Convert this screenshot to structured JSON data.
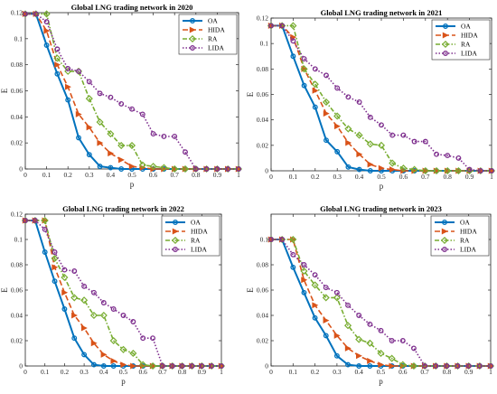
{
  "chart_data": [
    {
      "type": "line",
      "title": "Global LNG trading network in 2020",
      "xlabel": "p",
      "ylabel": "E",
      "xlim": [
        0,
        1
      ],
      "ylim": [
        0,
        0.12
      ],
      "xticks": [
        "0",
        "0.1",
        "0.2",
        "0.3",
        "0.4",
        "0.5",
        "0.6",
        "0.7",
        "0.8",
        "0.9",
        "1"
      ],
      "yticks": [
        "0",
        "0.02",
        "0.04",
        "0.06",
        "0.08",
        "0.1",
        "0.12"
      ],
      "ytick_values": [
        0,
        0.02,
        0.04,
        0.06,
        0.08,
        0.1,
        0.12
      ],
      "legend_position": "top-right",
      "series": [
        {
          "name": "OA",
          "color": "#0072BD",
          "marker": "circle",
          "x": [
            0,
            0.05,
            0.1,
            0.15,
            0.2,
            0.25,
            0.3,
            0.35,
            0.4,
            0.45,
            0.5,
            0.55,
            0.6,
            0.65,
            0.7,
            0.75,
            0.8,
            0.85,
            0.9,
            0.95,
            1
          ],
          "y": [
            0.119,
            0.119,
            0.095,
            0.073,
            0.053,
            0.024,
            0.011,
            0.002,
            0.001,
            0,
            0,
            0,
            0,
            0,
            0,
            0,
            0,
            0,
            0,
            0,
            0
          ]
        },
        {
          "name": "HIDA",
          "color": "#D95319",
          "marker": "triangle",
          "x": [
            0,
            0.05,
            0.1,
            0.15,
            0.2,
            0.25,
            0.3,
            0.35,
            0.4,
            0.45,
            0.5,
            0.55,
            0.6,
            0.65,
            0.7,
            0.75,
            0.8,
            0.85,
            0.9,
            0.95,
            1
          ],
          "y": [
            0.119,
            0.119,
            0.106,
            0.08,
            0.063,
            0.042,
            0.032,
            0.02,
            0.012,
            0.007,
            0.002,
            0.001,
            0,
            0,
            0,
            0,
            0,
            0,
            0,
            0,
            0
          ]
        },
        {
          "name": "RA",
          "color": "#77AC30",
          "marker": "diamond",
          "x": [
            0,
            0.05,
            0.1,
            0.15,
            0.2,
            0.25,
            0.3,
            0.35,
            0.4,
            0.45,
            0.5,
            0.55,
            0.6,
            0.65,
            0.7,
            0.75,
            0.8,
            0.85,
            0.9,
            0.95,
            1
          ],
          "y": [
            0.119,
            0.119,
            0.119,
            0.085,
            0.075,
            0.075,
            0.054,
            0.036,
            0.027,
            0.018,
            0.018,
            0.003,
            0.002,
            0.001,
            0,
            0,
            0,
            0,
            0,
            0,
            0
          ]
        },
        {
          "name": "LIDA",
          "color": "#7E2F8E",
          "marker": "circle",
          "x": [
            0,
            0.05,
            0.1,
            0.15,
            0.2,
            0.25,
            0.3,
            0.35,
            0.4,
            0.45,
            0.5,
            0.55,
            0.6,
            0.65,
            0.7,
            0.75,
            0.8,
            0.85,
            0.9,
            0.95,
            1
          ],
          "y": [
            0.119,
            0.119,
            0.113,
            0.092,
            0.077,
            0.075,
            0.067,
            0.058,
            0.055,
            0.05,
            0.046,
            0.042,
            0.027,
            0.025,
            0.025,
            0.013,
            0,
            0,
            0,
            0,
            0
          ]
        }
      ]
    },
    {
      "type": "line",
      "title": "Global LNG trading network in 2021",
      "xlabel": "p",
      "ylabel": "E",
      "xlim": [
        0,
        1
      ],
      "ylim": [
        0,
        0.12
      ],
      "xticks": [
        "0",
        "0.1",
        "0.2",
        "0.3",
        "0.4",
        "0.5",
        "0.6",
        "0.7",
        "0.8",
        "0.9",
        "1"
      ],
      "yticks": [
        "0",
        "0.02",
        "0.04",
        "0.06",
        "0.08",
        "0.1",
        "0.12"
      ],
      "ytick_values": [
        0,
        0.02,
        0.04,
        0.06,
        0.08,
        0.1,
        0.12
      ],
      "legend_position": "top-right",
      "series": [
        {
          "name": "OA",
          "color": "#0072BD",
          "marker": "circle",
          "x": [
            0,
            0.05,
            0.1,
            0.15,
            0.2,
            0.25,
            0.3,
            0.35,
            0.4,
            0.45,
            0.5,
            0.55,
            0.6,
            0.65,
            0.7,
            0.75,
            0.8,
            0.85,
            0.9,
            0.95,
            1
          ],
          "y": [
            0.114,
            0.114,
            0.09,
            0.067,
            0.05,
            0.024,
            0.015,
            0.003,
            0.001,
            0,
            0,
            0,
            0,
            0,
            0,
            0,
            0,
            0,
            0,
            0,
            0
          ]
        },
        {
          "name": "HIDA",
          "color": "#D95319",
          "marker": "triangle",
          "x": [
            0,
            0.05,
            0.1,
            0.15,
            0.2,
            0.25,
            0.3,
            0.35,
            0.4,
            0.45,
            0.5,
            0.55,
            0.6,
            0.65,
            0.7,
            0.75,
            0.8,
            0.85,
            0.9,
            0.95,
            1
          ],
          "y": [
            0.114,
            0.114,
            0.105,
            0.08,
            0.063,
            0.045,
            0.035,
            0.022,
            0.013,
            0.005,
            0.002,
            0.001,
            0,
            0,
            0,
            0,
            0,
            0,
            0,
            0,
            0
          ]
        },
        {
          "name": "RA",
          "color": "#77AC30",
          "marker": "diamond",
          "x": [
            0,
            0.05,
            0.1,
            0.15,
            0.2,
            0.25,
            0.3,
            0.35,
            0.4,
            0.45,
            0.5,
            0.55,
            0.6,
            0.65,
            0.7,
            0.75,
            0.8,
            0.85,
            0.9,
            0.95,
            1
          ],
          "y": [
            0.114,
            0.114,
            0.114,
            0.08,
            0.068,
            0.054,
            0.043,
            0.033,
            0.028,
            0.021,
            0.02,
            0.006,
            0.002,
            0.001,
            0,
            0,
            0,
            0,
            0,
            0,
            0
          ]
        },
        {
          "name": "LIDA",
          "color": "#7E2F8E",
          "marker": "circle",
          "x": [
            0,
            0.05,
            0.1,
            0.15,
            0.2,
            0.25,
            0.3,
            0.35,
            0.4,
            0.45,
            0.5,
            0.55,
            0.6,
            0.65,
            0.7,
            0.75,
            0.8,
            0.85,
            0.9,
            0.95,
            1
          ],
          "y": [
            0.114,
            0.114,
            0.102,
            0.088,
            0.08,
            0.075,
            0.065,
            0.058,
            0.054,
            0.042,
            0.036,
            0.028,
            0.028,
            0.023,
            0.023,
            0.013,
            0.012,
            0.01,
            0.001,
            0,
            0
          ]
        }
      ]
    },
    {
      "type": "line",
      "title": "Global LNG trading network in 2022",
      "xlabel": "p",
      "ylabel": "E",
      "xlim": [
        0,
        1
      ],
      "ylim": [
        0,
        0.12
      ],
      "xticks": [
        "0",
        "0.1",
        "0.2",
        "0.3",
        "0.4",
        "0.5",
        "0.6",
        "0.7",
        "0.8",
        "0.9",
        "1"
      ],
      "yticks": [
        "0",
        "0.02",
        "0.04",
        "0.06",
        "0.08",
        "0.1",
        "0.12"
      ],
      "ytick_values": [
        0,
        0.02,
        0.04,
        0.06,
        0.08,
        0.1,
        0.12
      ],
      "legend_position": "top-right",
      "series": [
        {
          "name": "OA",
          "color": "#0072BD",
          "marker": "circle",
          "x": [
            0,
            0.05,
            0.1,
            0.15,
            0.2,
            0.25,
            0.3,
            0.35,
            0.4,
            0.45,
            0.5,
            0.55,
            0.6,
            0.65,
            0.7,
            0.75,
            0.8,
            0.85,
            0.9,
            0.95,
            1
          ],
          "y": [
            0.115,
            0.115,
            0.09,
            0.067,
            0.045,
            0.022,
            0.009,
            0.001,
            0,
            0,
            0,
            0,
            0,
            0,
            0,
            0,
            0,
            0,
            0,
            0,
            0
          ]
        },
        {
          "name": "HIDA",
          "color": "#D95319",
          "marker": "triangle",
          "x": [
            0,
            0.05,
            0.1,
            0.15,
            0.2,
            0.25,
            0.3,
            0.35,
            0.4,
            0.45,
            0.5,
            0.55,
            0.6,
            0.65,
            0.7,
            0.75,
            0.8,
            0.85,
            0.9,
            0.95,
            1
          ],
          "y": [
            0.115,
            0.115,
            0.115,
            0.078,
            0.058,
            0.04,
            0.03,
            0.018,
            0.009,
            0.004,
            0.001,
            0,
            0,
            0,
            0,
            0,
            0,
            0,
            0,
            0,
            0
          ]
        },
        {
          "name": "RA",
          "color": "#77AC30",
          "marker": "diamond",
          "x": [
            0,
            0.05,
            0.1,
            0.15,
            0.2,
            0.25,
            0.3,
            0.35,
            0.4,
            0.45,
            0.5,
            0.55,
            0.6,
            0.65,
            0.7,
            0.75,
            0.8,
            0.85,
            0.9,
            0.95,
            1
          ],
          "y": [
            0.115,
            0.115,
            0.115,
            0.085,
            0.07,
            0.054,
            0.052,
            0.04,
            0.04,
            0.02,
            0.013,
            0.01,
            0.001,
            0,
            0,
            0,
            0,
            0,
            0,
            0,
            0
          ]
        },
        {
          "name": "LIDA",
          "color": "#7E2F8E",
          "marker": "circle",
          "x": [
            0,
            0.05,
            0.1,
            0.15,
            0.2,
            0.25,
            0.3,
            0.35,
            0.4,
            0.45,
            0.5,
            0.55,
            0.6,
            0.65,
            0.7,
            0.75,
            0.8,
            0.85,
            0.9,
            0.95,
            1
          ],
          "y": [
            0.115,
            0.115,
            0.108,
            0.09,
            0.076,
            0.075,
            0.063,
            0.058,
            0.05,
            0.045,
            0.04,
            0.035,
            0.022,
            0.022,
            0,
            0,
            0,
            0,
            0,
            0,
            0
          ]
        }
      ]
    },
    {
      "type": "line",
      "title": "Global LNG trading network in 2023",
      "xlabel": "p",
      "ylabel": "E",
      "xlim": [
        0,
        1
      ],
      "ylim": [
        0,
        0.12
      ],
      "xticks": [
        "0",
        "0.1",
        "0.2",
        "0.3",
        "0.4",
        "0.5",
        "0.6",
        "0.7",
        "0.8",
        "0.9",
        "1"
      ],
      "yticks": [
        "0",
        "0.02",
        "0.04",
        "0.06",
        "0.08",
        "0.1"
      ],
      "ytick_values": [
        0,
        0.02,
        0.04,
        0.06,
        0.08,
        0.1
      ],
      "legend_position": "top-right",
      "series": [
        {
          "name": "OA",
          "color": "#0072BD",
          "marker": "circle",
          "x": [
            0,
            0.05,
            0.1,
            0.15,
            0.2,
            0.25,
            0.3,
            0.35,
            0.4,
            0.45,
            0.5,
            0.55,
            0.6,
            0.65,
            0.7,
            0.75,
            0.8,
            0.85,
            0.9,
            0.95,
            1
          ],
          "y": [
            0.1,
            0.1,
            0.078,
            0.058,
            0.038,
            0.024,
            0.008,
            0.001,
            0,
            0,
            0,
            0,
            0,
            0,
            0,
            0,
            0,
            0,
            0,
            0,
            0
          ]
        },
        {
          "name": "HIDA",
          "color": "#D95319",
          "marker": "triangle",
          "x": [
            0,
            0.05,
            0.1,
            0.15,
            0.2,
            0.25,
            0.3,
            0.35,
            0.4,
            0.45,
            0.5,
            0.55,
            0.6,
            0.65,
            0.7,
            0.75,
            0.8,
            0.85,
            0.9,
            0.95,
            1
          ],
          "y": [
            0.1,
            0.1,
            0.1,
            0.068,
            0.048,
            0.036,
            0.024,
            0.014,
            0.008,
            0.004,
            0.001,
            0,
            0,
            0,
            0,
            0,
            0,
            0,
            0,
            0,
            0
          ]
        },
        {
          "name": "RA",
          "color": "#77AC30",
          "marker": "diamond",
          "x": [
            0,
            0.05,
            0.1,
            0.15,
            0.2,
            0.25,
            0.3,
            0.35,
            0.4,
            0.45,
            0.5,
            0.55,
            0.6,
            0.65,
            0.7,
            0.75,
            0.8,
            0.85,
            0.9,
            0.95,
            1
          ],
          "y": [
            0.1,
            0.1,
            0.1,
            0.075,
            0.064,
            0.054,
            0.054,
            0.032,
            0.021,
            0.018,
            0.01,
            0.006,
            0.001,
            0,
            0,
            0,
            0,
            0,
            0,
            0,
            0
          ]
        },
        {
          "name": "LIDA",
          "color": "#7E2F8E",
          "marker": "circle",
          "x": [
            0,
            0.05,
            0.1,
            0.15,
            0.2,
            0.25,
            0.3,
            0.35,
            0.4,
            0.45,
            0.5,
            0.55,
            0.6,
            0.65,
            0.7,
            0.75,
            0.8,
            0.85,
            0.9,
            0.95,
            1
          ],
          "y": [
            0.1,
            0.1,
            0.088,
            0.08,
            0.072,
            0.062,
            0.058,
            0.048,
            0.04,
            0.033,
            0.028,
            0.02,
            0.02,
            0.014,
            0,
            0,
            0,
            0,
            0,
            0,
            0
          ]
        }
      ]
    }
  ]
}
